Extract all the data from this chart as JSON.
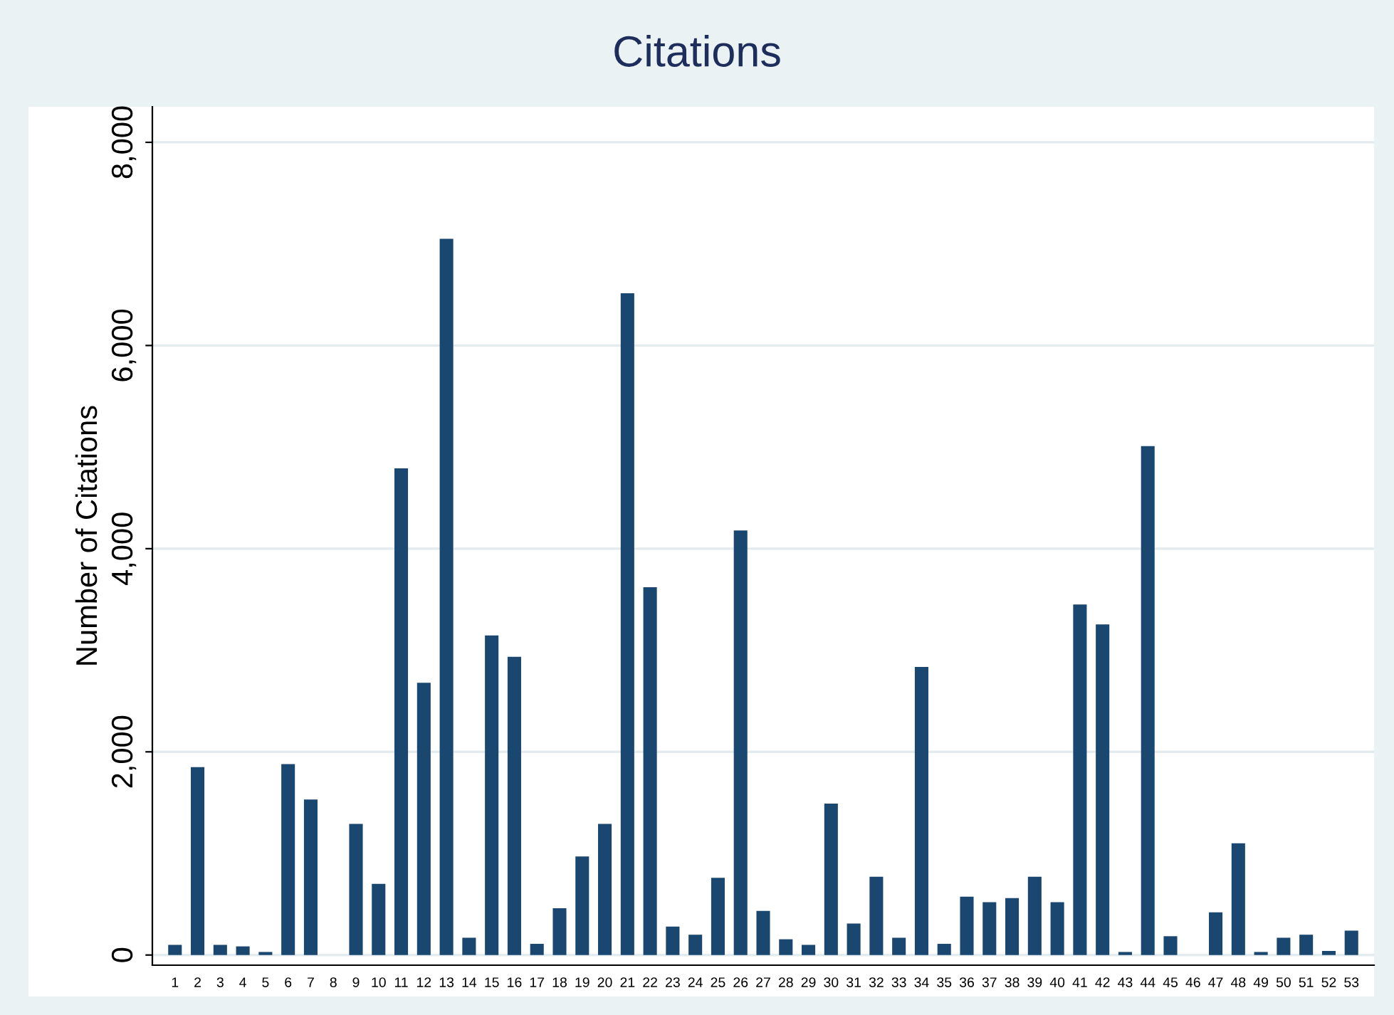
{
  "chart_data": {
    "type": "bar",
    "title": "Citations",
    "ylabel": "Number of Citations",
    "categories": [
      "1",
      "2",
      "3",
      "4",
      "5",
      "6",
      "7",
      "8",
      "9",
      "10",
      "11",
      "12",
      "13",
      "14",
      "15",
      "16",
      "17",
      "18",
      "19",
      "20",
      "21",
      "22",
      "23",
      "24",
      "25",
      "26",
      "27",
      "28",
      "29",
      "30",
      "31",
      "32",
      "33",
      "34",
      "35",
      "36",
      "37",
      "38",
      "39",
      "40",
      "41",
      "42",
      "43",
      "44",
      "45",
      "46",
      "47",
      "48",
      "49",
      "50",
      "51",
      "52",
      "53"
    ],
    "values": [
      100,
      1850,
      100,
      85,
      30,
      1880,
      1530,
      0,
      1290,
      700,
      4790,
      2680,
      7050,
      170,
      3145,
      2935,
      110,
      460,
      970,
      1290,
      6515,
      3620,
      280,
      200,
      760,
      4180,
      435,
      155,
      100,
      1490,
      310,
      770,
      170,
      2835,
      110,
      575,
      520,
      560,
      770,
      520,
      3450,
      3255,
      30,
      5010,
      185,
      0,
      420,
      1100,
      30,
      170,
      200,
      40,
      240
    ],
    "color": "#1a476f",
    "ylim": [
      -100,
      8350
    ],
    "yticks": [
      {
        "value": 0,
        "label": "0"
      },
      {
        "value": 2000,
        "label": "2,000"
      },
      {
        "value": 4000,
        "label": "4,000"
      },
      {
        "value": 6000,
        "label": "6,000"
      },
      {
        "value": 8000,
        "label": "8,000"
      }
    ],
    "grid": "y"
  }
}
